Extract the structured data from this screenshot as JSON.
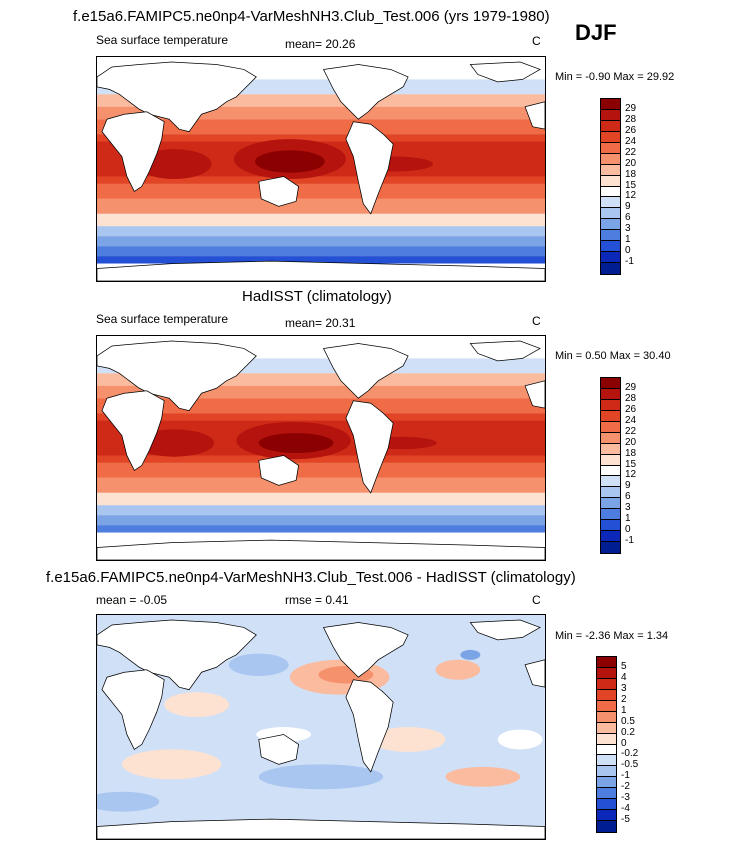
{
  "season": "DJF",
  "panels": [
    {
      "title": "f.e15a6.FAMIPC5.ne0np4-VarMeshNH3.Club_Test.006 (yrs 1979-1980)",
      "left_label": "Sea surface temperature",
      "center_label": "mean=  20.26",
      "units": "C",
      "minmax": "Min =  -0.90 Max =  29.92"
    },
    {
      "title": "HadISST (climatology)",
      "left_label": "Sea surface temperature",
      "center_label": "mean=  20.31",
      "units": "C",
      "minmax": "Min =  0.50 Max =  30.40"
    },
    {
      "title": "f.e15a6.FAMIPC5.ne0np4-VarMeshNH3.Club_Test.006 - HadISST (climatology)",
      "left_label": "mean =  -0.05",
      "center_label": "rmse =   0.41",
      "units": "C",
      "minmax": "Min =  -2.36 Max =   1.34"
    }
  ],
  "sst_colorbar": {
    "labels": [
      "29",
      "28",
      "26",
      "24",
      "22",
      "20",
      "18",
      "15",
      "12",
      "9",
      "6",
      "3",
      "1",
      "0",
      "-1"
    ],
    "colors": [
      "#8b0000",
      "#b5130d",
      "#cf2a18",
      "#e14526",
      "#ef6c47",
      "#f6916e",
      "#fbbb9f",
      "#fde2d2",
      "#ffffff",
      "#cfe0f7",
      "#a9c6f0",
      "#7aa4e6",
      "#4d7ddf",
      "#2450d6",
      "#0c28b8",
      "#001d91"
    ]
  },
  "diff_colorbar": {
    "labels": [
      "5",
      "4",
      "3",
      "2",
      "1",
      "0.5",
      "0.2",
      "0",
      "-0.2",
      "-0.5",
      "-1",
      "-2",
      "-3",
      "-4",
      "-5"
    ],
    "colors": [
      "#8b0000",
      "#b5130d",
      "#cf2a18",
      "#e14526",
      "#ef6c47",
      "#f6916e",
      "#fbbb9f",
      "#fde2d2",
      "#ffffff",
      "#cfe0f7",
      "#a9c6f0",
      "#7aa4e6",
      "#4d7ddf",
      "#2450d6",
      "#0c28b8",
      "#001d91"
    ]
  }
}
